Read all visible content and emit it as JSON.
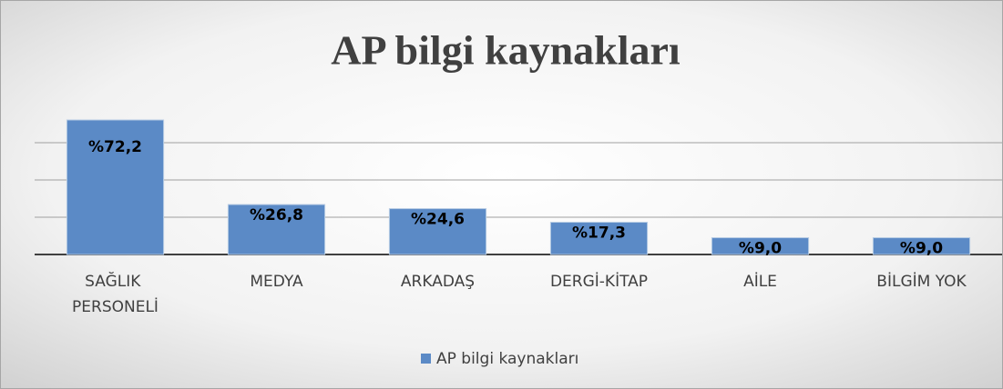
{
  "chart_data": {
    "type": "bar",
    "title": "AP bilgi kaynakları",
    "categories": [
      "SAĞLIK PERSONELİ",
      "MEDYA",
      "ARKADAŞ",
      "DERGİ-KİTAP",
      "AİLE",
      "BİLGİM YOK"
    ],
    "series": [
      {
        "name": "AP bilgi kaynakları",
        "color": "#5b8ac6",
        "values": [
          72.2,
          26.8,
          24.6,
          17.3,
          9.0,
          9.0
        ],
        "value_labels": [
          "%72,2",
          "%26,8",
          "%24,6",
          "%17,3",
          "%9,0",
          "%9,0"
        ]
      }
    ],
    "ylim": [
      0,
      80
    ],
    "yticks": [
      0,
      20,
      40,
      60
    ],
    "grid": true,
    "legend": "bottom"
  }
}
